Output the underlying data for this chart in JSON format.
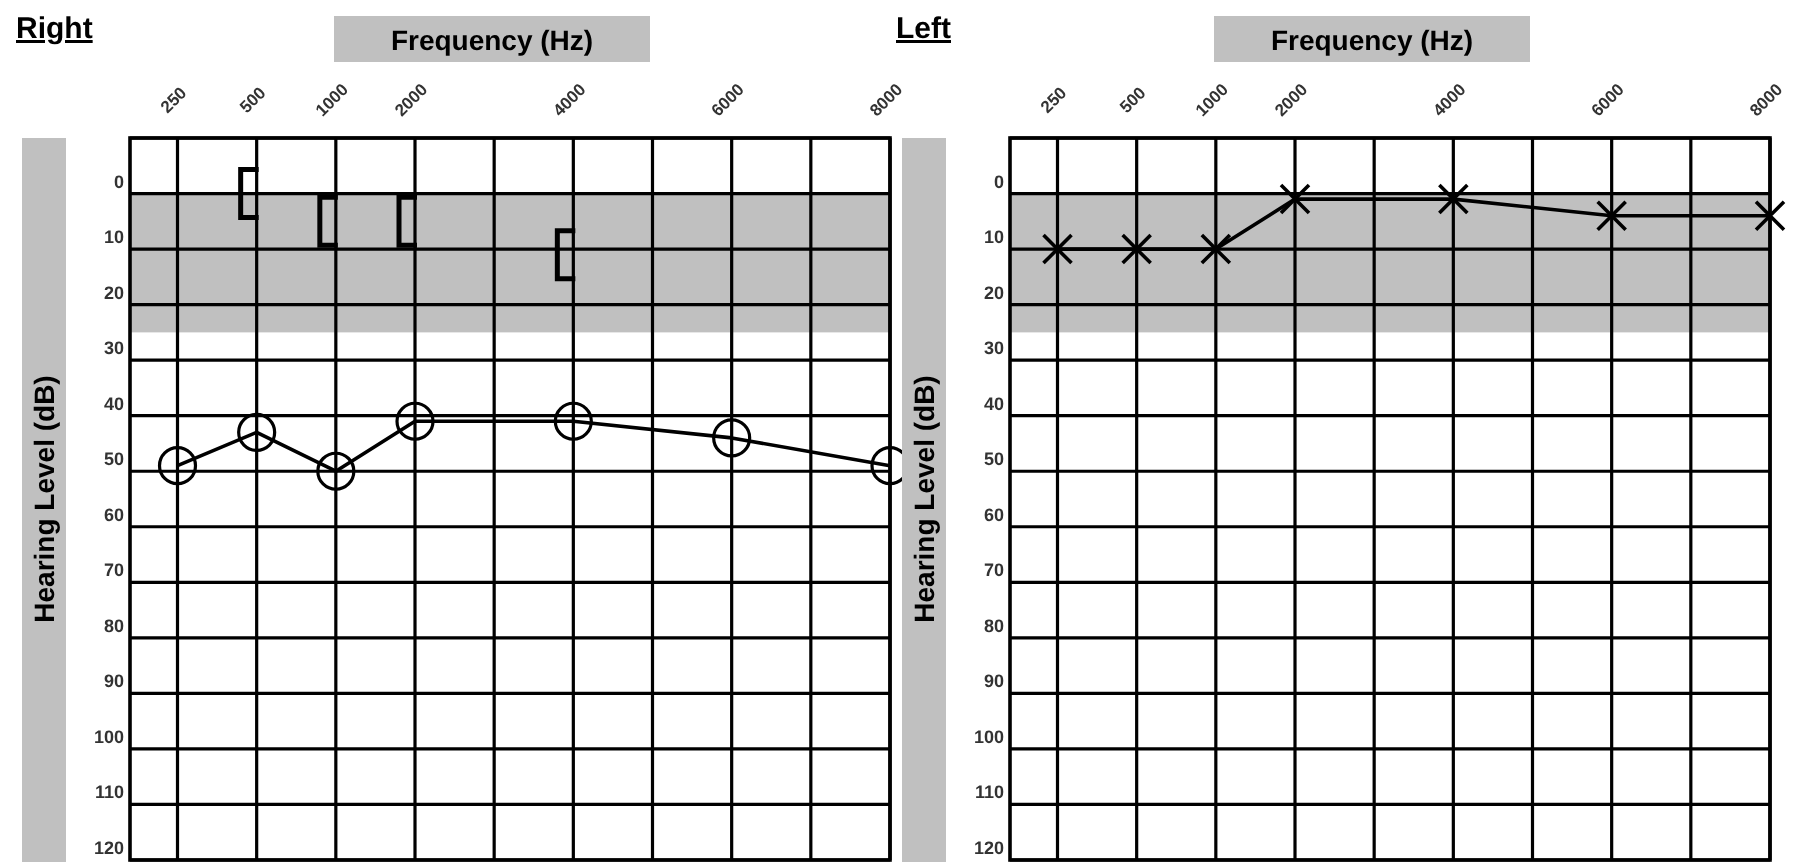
{
  "chart_data": [
    {
      "type": "line",
      "title": "Right",
      "xlabel": "Frequency (Hz)",
      "ylabel": "Hearing Level (dB)",
      "categories": [
        "250",
        "500",
        "1000",
        "2000",
        null,
        "4000",
        null,
        "6000",
        null,
        "8000"
      ],
      "ylim": [
        120,
        -10
      ],
      "yticks": [
        {
          "value": -10,
          "label": null
        },
        0,
        10,
        20,
        30,
        40,
        50,
        60,
        70,
        80,
        90,
        100,
        110,
        120
      ],
      "grid": true,
      "bands": [
        {
          "axis": "y",
          "from": 0,
          "to": 25,
          "color": "#c0c0c0"
        }
      ],
      "series": [
        {
          "type": "line",
          "color": "#000000",
          "marker": "circle",
          "values": [
            49,
            43,
            50,
            41,
            null,
            41,
            null,
            44,
            null,
            49
          ]
        },
        {
          "type": "scatter",
          "color": "#000000",
          "values": [
            null,
            0,
            5,
            5,
            null,
            11,
            null,
            null,
            null,
            null
          ]
        }
      ]
    },
    {
      "type": "line",
      "title": "Left",
      "xlabel": "Frequency (Hz)",
      "ylabel": "Hearing Level (dB)",
      "categories": [
        "250",
        "500",
        "1000",
        "2000",
        null,
        "4000",
        null,
        "6000",
        null,
        "8000"
      ],
      "ylim": [
        120,
        -10
      ],
      "yticks": [
        {
          "value": -10,
          "label": null
        },
        0,
        10,
        20,
        30,
        40,
        50,
        60,
        70,
        80,
        90,
        100,
        110,
        120
      ],
      "grid": true,
      "bands": [
        {
          "axis": "y",
          "from": 0,
          "to": 25,
          "color": "#c0c0c0"
        }
      ],
      "series": [
        {
          "type": "line",
          "color": "#000000",
          "marker": "cross",
          "values": [
            10,
            10,
            10,
            1,
            null,
            1,
            null,
            4,
            null,
            4
          ]
        }
      ]
    }
  ]
}
